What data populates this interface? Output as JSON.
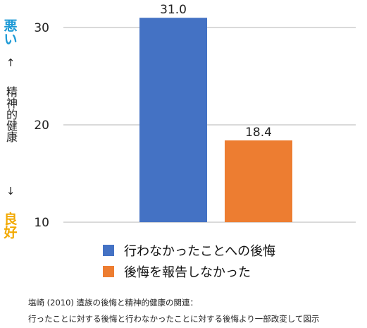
{
  "y_axis_label": {
    "top": "悪い",
    "up_arrow": "↑",
    "middle": "精神的健康",
    "down_arrow": "↓",
    "bottom": "良好"
  },
  "colors": {
    "top_label": "#1e9ad6",
    "bottom_label": "#f2a900",
    "gridline": "#b5b5b5"
  },
  "chart_data": {
    "type": "bar",
    "categories": [
      "行わなかったことへの後悔",
      "後悔を報告しなかった"
    ],
    "values": [
      31.0,
      18.4
    ],
    "value_labels": [
      "31.0",
      "18.4"
    ],
    "colors": [
      "#4472c4",
      "#ed7d31"
    ],
    "ylim": [
      10,
      32
    ],
    "yticks": [
      10,
      20,
      30
    ],
    "title": "",
    "xlabel": "",
    "ylabel": "悪い ↑ 精神的健康 ↓ 良好",
    "grid": true,
    "legend_position": "bottom"
  },
  "source": {
    "line1": "塩崎 (2010) 遺族の後悔と精神的健康の関連：",
    "line2": "行ったことに対する後悔と行わなかったことに対する後悔より一部改変して図示"
  }
}
